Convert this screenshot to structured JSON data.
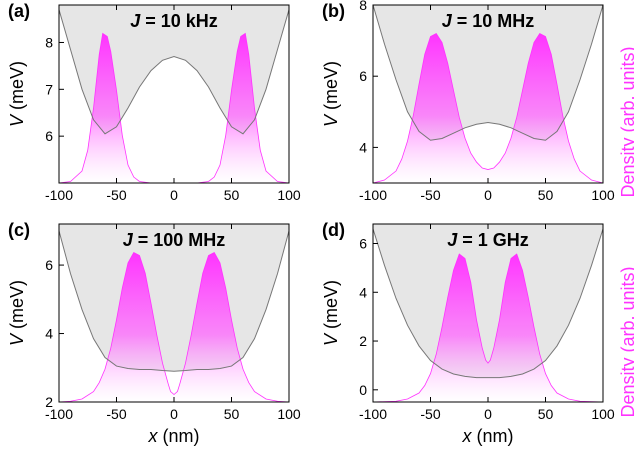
{
  "figure": {
    "density_label": "Density (arb. units)",
    "colors": {
      "potential_fill": "#e6e6e6",
      "potential_line": "#777777",
      "density": "#ff33ff"
    }
  },
  "chart_data": [
    {
      "type": "area",
      "panel_label": "(a)",
      "title": "J = 10 kHz",
      "xlabel": "",
      "ylabel": "V (meV)",
      "xlim": [
        -100,
        100
      ],
      "ylim": [
        5.0,
        8.8
      ],
      "xticks": [
        -100,
        -50,
        0,
        50,
        100
      ],
      "yticks": [
        6,
        7,
        8
      ],
      "series": [
        {
          "kind": "potential",
          "x": [
            -100,
            -90,
            -80,
            -70,
            -60,
            -50,
            -40,
            -30,
            -20,
            -10,
            0,
            10,
            20,
            30,
            40,
            50,
            60,
            70,
            80,
            90,
            100
          ],
          "y": [
            8.7,
            7.85,
            7.0,
            6.35,
            6.05,
            6.2,
            6.6,
            7.05,
            7.4,
            7.62,
            7.7,
            7.62,
            7.4,
            7.05,
            6.6,
            6.2,
            6.05,
            6.35,
            7.0,
            7.85,
            8.7
          ]
        },
        {
          "kind": "density",
          "x": [
            -100,
            -90,
            -80,
            -75,
            -70,
            -65,
            -62,
            -58,
            -55,
            -50,
            -45,
            -40,
            -35,
            -30,
            -20,
            -10,
            0,
            10,
            20,
            30,
            35,
            40,
            45,
            50,
            55,
            58,
            62,
            65,
            70,
            75,
            80,
            90,
            100
          ],
          "y": [
            0,
            0.01,
            0.08,
            0.22,
            0.5,
            0.86,
            1.0,
            0.98,
            0.88,
            0.62,
            0.32,
            0.12,
            0.04,
            0.01,
            0,
            0,
            0,
            0,
            0,
            0.01,
            0.04,
            0.12,
            0.32,
            0.62,
            0.88,
            0.98,
            1.0,
            0.86,
            0.5,
            0.22,
            0.08,
            0.01,
            0
          ]
        }
      ]
    },
    {
      "type": "area",
      "panel_label": "(b)",
      "title": "J = 10 MHz",
      "xlabel": "",
      "ylabel": "V (meV)",
      "xlim": [
        -100,
        100
      ],
      "ylim": [
        3.0,
        8.0
      ],
      "xticks": [
        -100,
        -50,
        0,
        50,
        100
      ],
      "yticks": [
        4,
        6,
        8
      ],
      "series": [
        {
          "kind": "potential",
          "x": [
            -100,
            -90,
            -80,
            -70,
            -60,
            -50,
            -40,
            -30,
            -20,
            -10,
            0,
            10,
            20,
            30,
            40,
            50,
            60,
            70,
            80,
            90,
            100
          ],
          "y": [
            8.0,
            6.9,
            5.9,
            5.0,
            4.45,
            4.2,
            4.25,
            4.4,
            4.55,
            4.65,
            4.7,
            4.65,
            4.55,
            4.4,
            4.25,
            4.2,
            4.45,
            5.0,
            5.9,
            6.9,
            8.0
          ]
        },
        {
          "kind": "density",
          "x": [
            -100,
            -90,
            -80,
            -75,
            -70,
            -65,
            -60,
            -55,
            -50,
            -45,
            -40,
            -35,
            -30,
            -25,
            -20,
            -15,
            -10,
            -5,
            0,
            5,
            10,
            15,
            20,
            25,
            30,
            35,
            40,
            45,
            50,
            55,
            60,
            65,
            70,
            75,
            80,
            90,
            100
          ],
          "y": [
            0,
            0.02,
            0.08,
            0.16,
            0.28,
            0.45,
            0.66,
            0.86,
            0.98,
            1.0,
            0.94,
            0.8,
            0.62,
            0.44,
            0.3,
            0.2,
            0.14,
            0.1,
            0.09,
            0.1,
            0.14,
            0.2,
            0.3,
            0.44,
            0.62,
            0.8,
            0.94,
            1.0,
            0.98,
            0.86,
            0.66,
            0.45,
            0.28,
            0.16,
            0.08,
            0.02,
            0
          ]
        }
      ]
    },
    {
      "type": "area",
      "panel_label": "(c)",
      "title": "J = 100 MHz",
      "xlabel": "x (nm)",
      "ylabel": "V (meV)",
      "xlim": [
        -100,
        100
      ],
      "ylim": [
        2.0,
        7.2
      ],
      "xticks": [
        -100,
        -50,
        0,
        50,
        100
      ],
      "yticks": [
        2,
        4,
        6
      ],
      "series": [
        {
          "kind": "potential",
          "x": [
            -100,
            -90,
            -80,
            -70,
            -60,
            -50,
            -40,
            -30,
            -20,
            -10,
            0,
            10,
            20,
            30,
            40,
            50,
            60,
            70,
            80,
            90,
            100
          ],
          "y": [
            7.0,
            5.75,
            4.7,
            3.85,
            3.3,
            3.05,
            2.98,
            2.95,
            2.95,
            2.92,
            2.9,
            2.92,
            2.95,
            2.95,
            2.98,
            3.05,
            3.3,
            3.85,
            4.7,
            5.75,
            7.0
          ]
        },
        {
          "kind": "density",
          "x": [
            -100,
            -90,
            -80,
            -70,
            -65,
            -60,
            -55,
            -50,
            -45,
            -40,
            -35,
            -30,
            -25,
            -20,
            -15,
            -10,
            -5,
            -3,
            0,
            3,
            5,
            10,
            15,
            20,
            25,
            30,
            35,
            40,
            45,
            50,
            55,
            60,
            65,
            70,
            80,
            90,
            100
          ],
          "y": [
            0,
            0.005,
            0.02,
            0.07,
            0.13,
            0.22,
            0.36,
            0.55,
            0.76,
            0.93,
            1.0,
            0.98,
            0.86,
            0.66,
            0.45,
            0.26,
            0.12,
            0.07,
            0.05,
            0.07,
            0.12,
            0.26,
            0.45,
            0.66,
            0.86,
            0.98,
            1.0,
            0.93,
            0.76,
            0.55,
            0.36,
            0.22,
            0.13,
            0.07,
            0.02,
            0.005,
            0
          ]
        }
      ]
    },
    {
      "type": "area",
      "panel_label": "(d)",
      "title": "J = 1 GHz",
      "xlabel": "x (nm)",
      "ylabel": "V (meV)",
      "xlim": [
        -100,
        100
      ],
      "ylim": [
        -0.5,
        6.8
      ],
      "xticks": [
        -100,
        -50,
        0,
        50,
        100
      ],
      "yticks": [
        0,
        2,
        4,
        6
      ],
      "series": [
        {
          "kind": "potential",
          "x": [
            -100,
            -90,
            -80,
            -70,
            -60,
            -50,
            -40,
            -30,
            -20,
            -10,
            0,
            10,
            20,
            30,
            40,
            50,
            60,
            70,
            80,
            90,
            100
          ],
          "y": [
            6.6,
            5.1,
            3.75,
            2.65,
            1.8,
            1.2,
            0.85,
            0.65,
            0.55,
            0.5,
            0.5,
            0.5,
            0.55,
            0.65,
            0.85,
            1.2,
            1.8,
            2.65,
            3.75,
            5.1,
            6.6
          ]
        },
        {
          "kind": "density",
          "x": [
            -100,
            -80,
            -70,
            -60,
            -55,
            -50,
            -45,
            -40,
            -35,
            -30,
            -25,
            -20,
            -15,
            -10,
            -5,
            -2,
            0,
            2,
            5,
            10,
            15,
            20,
            25,
            30,
            35,
            40,
            45,
            50,
            55,
            60,
            70,
            80,
            100
          ],
          "y": [
            0,
            0.005,
            0.02,
            0.06,
            0.11,
            0.19,
            0.32,
            0.5,
            0.7,
            0.88,
            0.99,
            0.96,
            0.8,
            0.55,
            0.36,
            0.28,
            0.26,
            0.28,
            0.36,
            0.55,
            0.8,
            0.96,
            0.99,
            0.88,
            0.7,
            0.5,
            0.32,
            0.19,
            0.11,
            0.06,
            0.02,
            0.005,
            0
          ]
        }
      ]
    }
  ]
}
